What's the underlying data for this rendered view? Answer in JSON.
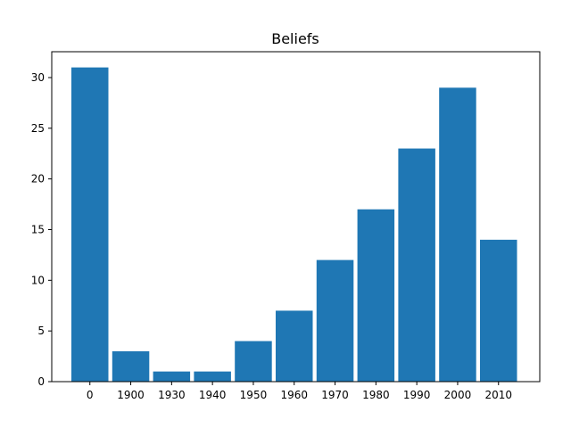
{
  "chart_data": {
    "type": "bar",
    "title": "Beliefs",
    "xlabel": "",
    "ylabel": "",
    "categories": [
      "0",
      "1900",
      "1930",
      "1940",
      "1950",
      "1960",
      "1970",
      "1980",
      "1990",
      "2000",
      "2010"
    ],
    "values": [
      31,
      3,
      1,
      1,
      4,
      7,
      12,
      17,
      23,
      29,
      14
    ],
    "ylim": [
      0,
      32.55
    ],
    "yticks": [
      0,
      5,
      10,
      15,
      20,
      25,
      30
    ],
    "grid": false,
    "bar_color": "#1f77b4"
  }
}
